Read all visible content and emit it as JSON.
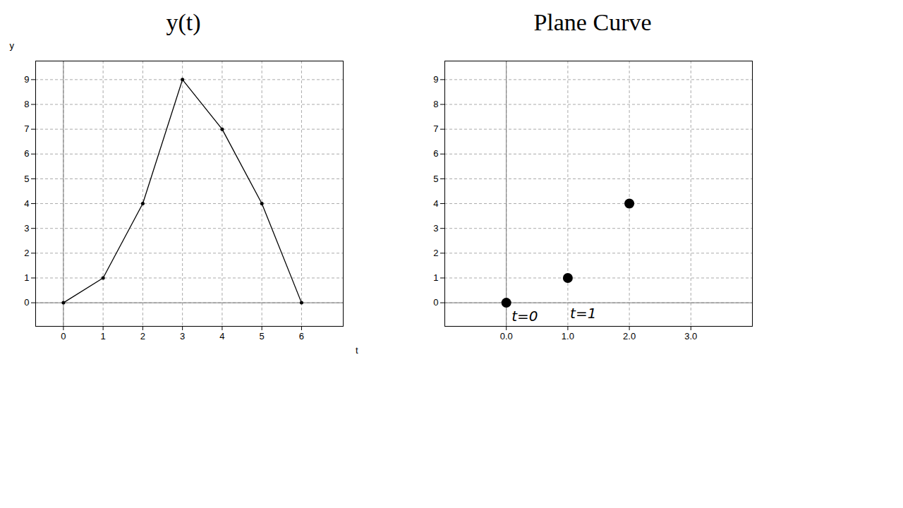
{
  "chart_data": [
    {
      "type": "line",
      "title": "y(t)",
      "xlabel": "t",
      "ylabel": "y",
      "x": [
        0,
        1,
        2,
        3,
        4,
        5,
        6
      ],
      "values": [
        0,
        1,
        4,
        9,
        7,
        4,
        0
      ],
      "color": "#000000",
      "marker": "circle",
      "xlim": [
        -0.7,
        7.05
      ],
      "ylim": [
        -0.95,
        9.75
      ],
      "xticks": [
        0,
        1,
        2,
        3,
        4,
        5,
        6
      ],
      "yticks": [
        0,
        1,
        2,
        3,
        4,
        5,
        6,
        7,
        8,
        9
      ],
      "grid": true
    },
    {
      "type": "scatter",
      "title": "Plane Curve",
      "x": [
        0,
        1,
        2
      ],
      "values": [
        0,
        1,
        4
      ],
      "color": "#000000",
      "marker": "circle",
      "xlim": [
        -1,
        4
      ],
      "ylim": [
        -0.95,
        9.75
      ],
      "xticks": [
        0,
        1,
        2,
        3
      ],
      "yticks": [
        0,
        1,
        2,
        3,
        4,
        5,
        6,
        7,
        8,
        9
      ],
      "grid": true,
      "annotations": [
        {
          "text": "t=0",
          "x": 0.3,
          "y": -0.55
        },
        {
          "text": "t=1",
          "x": 1.25,
          "y": -0.45
        }
      ]
    }
  ]
}
